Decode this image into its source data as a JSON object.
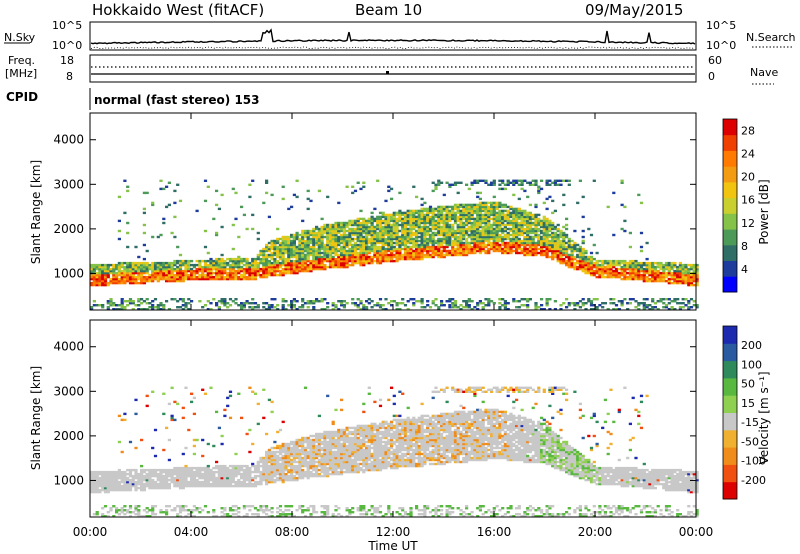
{
  "header": {
    "title": "Hokkaido West (fitACF)",
    "beam": "Beam 10",
    "date": "09/May/2015"
  },
  "top_panels": {
    "nsky_label": "N.Sky",
    "nsky_left_ticks": [
      "10^5",
      "10^0"
    ],
    "nsky_right_ticks": [
      "10^5",
      "10^0"
    ],
    "nsearch_label": "N.Search",
    "freq_label_line1": "Freq.",
    "freq_label_line2": "[MHz]",
    "freq_ticks": [
      "18",
      "8"
    ],
    "nave_ticks": [
      "60",
      "0"
    ],
    "nave_label": "Nave",
    "cpid_label": "CPID",
    "cpid_text": "normal (fast stereo) 153"
  },
  "chart_data": [
    {
      "type": "heatmap",
      "title": "",
      "xlabel": "",
      "ylabel": "Slant Range [km]",
      "x_ticks": [
        "00:00",
        "04:00",
        "08:00",
        "12:00",
        "16:00",
        "20:00",
        "00:00"
      ],
      "y_ticks": [
        "1000",
        "2000",
        "3000",
        "4000"
      ],
      "xlim_hours": [
        0,
        24
      ],
      "ylim_km": [
        180,
        4600
      ],
      "colorbar": {
        "label": "Power [dB]",
        "ticks": [
          "28",
          "24",
          "20",
          "16",
          "12",
          "8",
          "4"
        ],
        "range": [
          0,
          30
        ],
        "colors": [
          "#0000ff",
          "#1e3c9c",
          "#2f6e66",
          "#4c9a58",
          "#84c248",
          "#c8cf2e",
          "#f1c40f",
          "#f39c12",
          "#ff7a00",
          "#f04000",
          "#dd0000"
        ]
      },
      "echo_band": [
        {
          "t": 0.0,
          "lo": 700,
          "hi": 1200
        },
        {
          "t": 2.0,
          "lo": 760,
          "hi": 1230
        },
        {
          "t": 4.0,
          "lo": 820,
          "hi": 1280
        },
        {
          "t": 6.5,
          "lo": 850,
          "hi": 1350
        },
        {
          "t": 7.0,
          "lo": 900,
          "hi": 1700
        },
        {
          "t": 9.0,
          "lo": 1050,
          "hi": 2050
        },
        {
          "t": 12.0,
          "lo": 1250,
          "hi": 2350
        },
        {
          "t": 14.0,
          "lo": 1350,
          "hi": 2500
        },
        {
          "t": 16.0,
          "lo": 1450,
          "hi": 2600
        },
        {
          "t": 18.0,
          "lo": 1350,
          "hi": 2250
        },
        {
          "t": 19.0,
          "lo": 1100,
          "hi": 1750
        },
        {
          "t": 20.0,
          "lo": 900,
          "hi": 1300
        },
        {
          "t": 24.0,
          "lo": 700,
          "hi": 1200
        }
      ],
      "notes": [
        "strong echo (20-28 dB) along lower edge of band",
        "sparse scatter up to ~3000 km between 13:00 and 19:00",
        "near-range echoes below 400 km"
      ]
    },
    {
      "type": "heatmap",
      "title": "",
      "xlabel": "Time UT",
      "ylabel": "Slant Range [km]",
      "x_ticks": [
        "00:00",
        "04:00",
        "08:00",
        "12:00",
        "16:00",
        "20:00",
        "00:00"
      ],
      "y_ticks": [
        "1000",
        "2000",
        "3000",
        "4000"
      ],
      "xlim_hours": [
        0,
        24
      ],
      "ylim_km": [
        180,
        4600
      ],
      "colorbar": {
        "label": "Velocity [m s⁻¹]",
        "ticks": [
          "200",
          "100",
          "50",
          "15",
          "-15",
          "-50",
          "-100",
          "-200"
        ],
        "range": [
          -250,
          250
        ],
        "colors": [
          "#dd0000",
          "#f05010",
          "#f08c1a",
          "#f0b030",
          "#c8c8c8",
          "#90d050",
          "#58b840",
          "#2e8a5a",
          "#2a5aa0",
          "#1c2ab0"
        ]
      },
      "gray_ground_scatter": true,
      "notes": [
        "mostly ground scatter (gray) within echo band",
        "orange (negative velocity) patches 07:00-16:00",
        "green (positive velocity) patches 18:00-20:00"
      ]
    }
  ]
}
